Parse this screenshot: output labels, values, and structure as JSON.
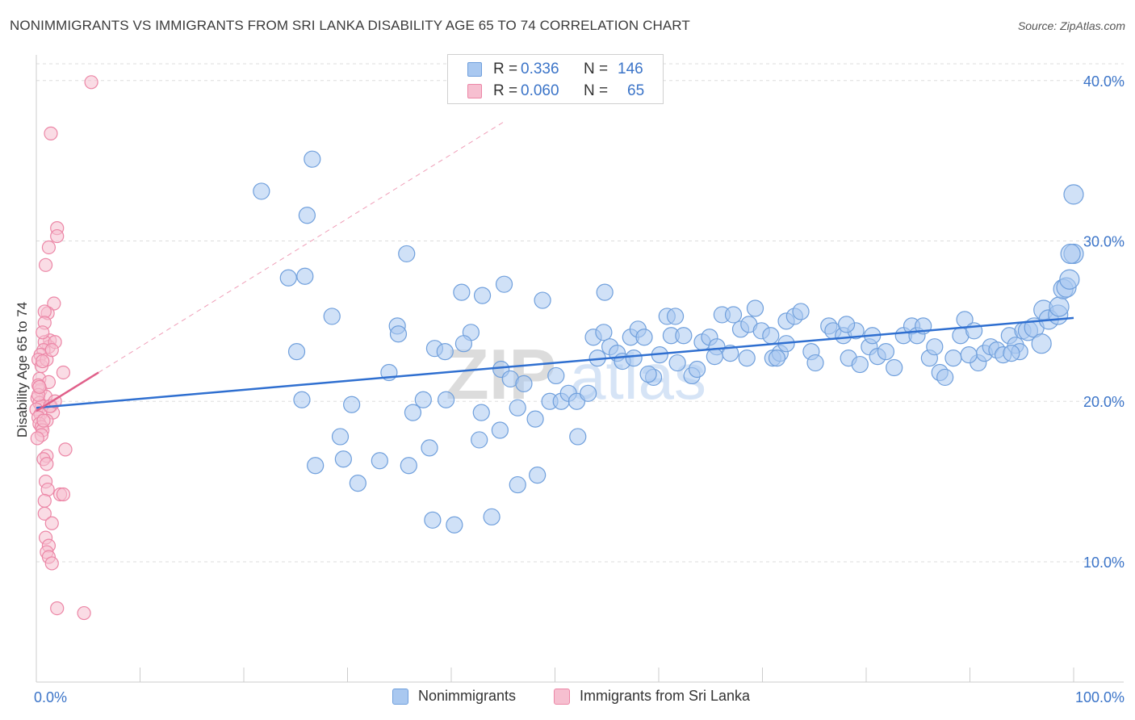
{
  "title": "NONIMMIGRANTS VS IMMIGRANTS FROM SRI LANKA DISABILITY AGE 65 TO 74 CORRELATION CHART",
  "source": "Source: ZipAtlas.com",
  "watermark": {
    "zip": "ZIP",
    "atlas": "atlas"
  },
  "colors": {
    "blue_fill": "#a9c8f0",
    "blue_stroke": "#6f9fdc",
    "blue_line": "#2f6fd0",
    "pink_fill": "#f6bfd0",
    "pink_stroke": "#ec86a6",
    "pink_line": "#e0608a",
    "axis_text": "#3b74c8",
    "grid": "#dddddd"
  },
  "legend_top": [
    {
      "r_label": "R =",
      "r_value": "0.336",
      "n_label": "N =",
      "n_value": "146",
      "color": "#a9c8f0",
      "border": "#6f9fdc"
    },
    {
      "r_label": "R =",
      "r_value": "0.060",
      "n_label": "N =",
      "n_value": "65",
      "color": "#f6bfd0",
      "border": "#ec86a6"
    }
  ],
  "legend_bottom": [
    {
      "label": "Nonimmigrants",
      "color": "#a9c8f0",
      "border": "#6f9fdc"
    },
    {
      "label": "Immigrants from Sri Lanka",
      "color": "#f6bfd0",
      "border": "#ec86a6"
    }
  ],
  "chart_data": {
    "type": "scatter",
    "title": "NONIMMIGRANTS VS IMMIGRANTS FROM SRI LANKA DISABILITY AGE 65 TO 74 CORRELATION CHART",
    "xlabel": "",
    "ylabel": "Disability Age 65 to 74",
    "xlim": [
      0,
      100
    ],
    "ylim": [
      2.5,
      41.5
    ],
    "x_tick_labels": [
      "0.0%",
      "100.0%"
    ],
    "y_ticks": [
      10,
      20,
      30,
      40
    ],
    "y_tick_labels": [
      "10.0%",
      "20.0%",
      "30.0%",
      "40.0%"
    ],
    "grid": true,
    "series": [
      {
        "name": "Nonimmigrants",
        "r": 0.336,
        "n": 146,
        "trend": {
          "x0": 0,
          "y0": 19.6,
          "x1": 100,
          "y1": 25.2
        },
        "points": [
          [
            21.7,
            33.1,
            10
          ],
          [
            26.6,
            35.1,
            10
          ],
          [
            26.1,
            31.6,
            10
          ],
          [
            35.7,
            29.2,
            10
          ],
          [
            24.3,
            27.7,
            10
          ],
          [
            25.9,
            27.8,
            10
          ],
          [
            41.0,
            26.8,
            10
          ],
          [
            43.0,
            26.6,
            10
          ],
          [
            45.1,
            27.3,
            10
          ],
          [
            48.8,
            26.3,
            10
          ],
          [
            54.8,
            26.8,
            10
          ],
          [
            28.5,
            25.3,
            10
          ],
          [
            34.8,
            24.7,
            10
          ],
          [
            34.9,
            24.2,
            10
          ],
          [
            41.9,
            24.3,
            10
          ],
          [
            41.2,
            23.6,
            10
          ],
          [
            38.4,
            23.3,
            10
          ],
          [
            39.4,
            23.1,
            10
          ],
          [
            25.1,
            23.1,
            10
          ],
          [
            30.4,
            19.8,
            10
          ],
          [
            34.0,
            21.8,
            10
          ],
          [
            37.3,
            20.1,
            10
          ],
          [
            39.5,
            20.1,
            10
          ],
          [
            42.9,
            19.3,
            10
          ],
          [
            44.8,
            22.0,
            10
          ],
          [
            45.7,
            21.4,
            10
          ],
          [
            47.0,
            21.1,
            10
          ],
          [
            46.4,
            19.6,
            10
          ],
          [
            48.1,
            18.9,
            10
          ],
          [
            50.1,
            21.6,
            10
          ],
          [
            49.5,
            20.0,
            10
          ],
          [
            50.6,
            20.0,
            10
          ],
          [
            51.3,
            20.5,
            10
          ],
          [
            52.1,
            20.0,
            10
          ],
          [
            53.2,
            20.5,
            10
          ],
          [
            36.3,
            19.3,
            10
          ],
          [
            25.6,
            20.1,
            10
          ],
          [
            29.3,
            17.8,
            10
          ],
          [
            29.6,
            16.4,
            10
          ],
          [
            31.0,
            14.9,
            10
          ],
          [
            33.1,
            16.3,
            10
          ],
          [
            35.9,
            16.0,
            10
          ],
          [
            37.9,
            17.1,
            10
          ],
          [
            42.7,
            17.6,
            10
          ],
          [
            44.7,
            18.2,
            10
          ],
          [
            46.4,
            14.8,
            10
          ],
          [
            48.3,
            15.4,
            10
          ],
          [
            52.2,
            17.8,
            10
          ],
          [
            38.2,
            12.6,
            10
          ],
          [
            40.3,
            12.3,
            10
          ],
          [
            43.9,
            12.8,
            10
          ],
          [
            26.9,
            16.0,
            10
          ],
          [
            53.7,
            24.0,
            10
          ],
          [
            54.7,
            24.3,
            10
          ],
          [
            55.3,
            23.4,
            10
          ],
          [
            54.1,
            22.7,
            10
          ],
          [
            56.0,
            23.0,
            10
          ],
          [
            56.5,
            22.5,
            10
          ],
          [
            57.6,
            22.7,
            10
          ],
          [
            57.3,
            24.0,
            10
          ],
          [
            58.0,
            24.5,
            10
          ],
          [
            59.5,
            21.5,
            10
          ],
          [
            60.1,
            22.9,
            10
          ],
          [
            59.0,
            21.7,
            10
          ],
          [
            60.8,
            25.3,
            10
          ],
          [
            61.2,
            24.1,
            10
          ],
          [
            61.8,
            22.4,
            10
          ],
          [
            62.4,
            24.1,
            10
          ],
          [
            63.2,
            21.6,
            10
          ],
          [
            63.7,
            22.0,
            10
          ],
          [
            64.2,
            23.7,
            10
          ],
          [
            64.9,
            24.0,
            10
          ],
          [
            65.6,
            23.4,
            10
          ],
          [
            66.1,
            25.4,
            10
          ],
          [
            66.9,
            23.0,
            10
          ],
          [
            67.2,
            25.4,
            10
          ],
          [
            67.9,
            24.5,
            10
          ],
          [
            68.5,
            22.7,
            10
          ],
          [
            68.7,
            24.8,
            10
          ],
          [
            69.3,
            25.8,
            10
          ],
          [
            69.9,
            24.4,
            10
          ],
          [
            70.8,
            24.1,
            10
          ],
          [
            71.0,
            22.7,
            10
          ],
          [
            71.7,
            23.0,
            10
          ],
          [
            72.3,
            23.6,
            10
          ],
          [
            72.3,
            25.0,
            10
          ],
          [
            73.1,
            25.3,
            10
          ],
          [
            73.7,
            25.6,
            10
          ],
          [
            74.7,
            23.1,
            10
          ],
          [
            75.1,
            22.4,
            10
          ],
          [
            76.4,
            24.7,
            10
          ],
          [
            76.8,
            24.4,
            10
          ],
          [
            77.8,
            24.1,
            10
          ],
          [
            78.3,
            22.7,
            10
          ],
          [
            79.0,
            24.4,
            10
          ],
          [
            79.4,
            22.3,
            10
          ],
          [
            80.3,
            23.4,
            10
          ],
          [
            80.6,
            24.1,
            10
          ],
          [
            81.1,
            22.8,
            10
          ],
          [
            81.9,
            23.1,
            10
          ],
          [
            82.7,
            22.1,
            10
          ],
          [
            83.6,
            24.1,
            10
          ],
          [
            84.4,
            24.7,
            10
          ],
          [
            84.9,
            24.1,
            10
          ],
          [
            85.5,
            24.7,
            10
          ],
          [
            86.1,
            22.7,
            10
          ],
          [
            86.6,
            23.4,
            10
          ],
          [
            87.1,
            21.8,
            10
          ],
          [
            87.6,
            21.5,
            10
          ],
          [
            88.4,
            22.7,
            10
          ],
          [
            89.1,
            24.1,
            10
          ],
          [
            89.5,
            25.1,
            10
          ],
          [
            90.4,
            24.4,
            10
          ],
          [
            90.8,
            22.4,
            10
          ],
          [
            91.4,
            23.0,
            10
          ],
          [
            92.0,
            23.4,
            10
          ],
          [
            92.6,
            23.2,
            10
          ],
          [
            93.2,
            22.9,
            10
          ],
          [
            93.8,
            24.1,
            10
          ],
          [
            94.4,
            23.5,
            10
          ],
          [
            94.8,
            23.1,
            10
          ],
          [
            95.1,
            24.4,
            10
          ],
          [
            95.6,
            24.4,
            12
          ],
          [
            96.2,
            24.6,
            12
          ],
          [
            96.9,
            23.6,
            12
          ],
          [
            97.1,
            25.7,
            12
          ],
          [
            97.6,
            25.1,
            12
          ],
          [
            98.5,
            25.4,
            12
          ],
          [
            98.6,
            25.9,
            12
          ],
          [
            99.0,
            27.0,
            12
          ],
          [
            99.3,
            27.1,
            12
          ],
          [
            99.6,
            27.6,
            12
          ],
          [
            100.0,
            29.2,
            12
          ],
          [
            99.7,
            29.2,
            12
          ],
          [
            100.0,
            32.9,
            12
          ],
          [
            94.0,
            23.0,
            10
          ],
          [
            89.9,
            22.9,
            10
          ],
          [
            78.1,
            24.8,
            10
          ],
          [
            71.4,
            22.7,
            10
          ],
          [
            65.4,
            22.8,
            10
          ],
          [
            61.6,
            25.3,
            10
          ],
          [
            58.6,
            24.0,
            10
          ]
        ]
      },
      {
        "name": "Immigrants from Sri Lanka",
        "r": 0.06,
        "n": 65,
        "trend": {
          "x0": 0,
          "y0": 19.4,
          "x1": 6.0,
          "y1": 21.8
        },
        "points": [
          [
            5.3,
            39.9,
            8
          ],
          [
            1.4,
            36.7,
            8
          ],
          [
            2.0,
            30.8,
            8
          ],
          [
            2.0,
            30.3,
            8
          ],
          [
            1.2,
            29.6,
            8
          ],
          [
            0.9,
            28.5,
            8
          ],
          [
            1.7,
            26.1,
            8
          ],
          [
            1.1,
            25.5,
            8
          ],
          [
            0.8,
            25.6,
            8
          ],
          [
            0.8,
            24.9,
            8
          ],
          [
            1.3,
            23.8,
            8
          ],
          [
            1.2,
            23.4,
            8
          ],
          [
            0.8,
            23.7,
            8
          ],
          [
            0.7,
            23.2,
            8
          ],
          [
            0.4,
            22.9,
            8
          ],
          [
            0.2,
            22.6,
            8
          ],
          [
            0.5,
            22.2,
            8
          ],
          [
            2.6,
            21.8,
            8
          ],
          [
            0.3,
            21.4,
            8
          ],
          [
            1.2,
            21.2,
            8
          ],
          [
            0.4,
            20.7,
            8
          ],
          [
            0.9,
            20.3,
            8
          ],
          [
            0.1,
            20.2,
            8
          ],
          [
            0.3,
            19.9,
            8
          ],
          [
            0.5,
            19.7,
            8
          ],
          [
            1.4,
            19.7,
            8
          ],
          [
            0.0,
            19.5,
            8
          ],
          [
            1.6,
            19.3,
            8
          ],
          [
            0.4,
            19.2,
            8
          ],
          [
            0.2,
            19.0,
            8
          ],
          [
            1.0,
            18.8,
            8
          ],
          [
            0.3,
            18.6,
            8
          ],
          [
            0.5,
            18.4,
            8
          ],
          [
            0.6,
            18.2,
            8
          ],
          [
            0.5,
            17.9,
            8
          ],
          [
            2.8,
            17.0,
            8
          ],
          [
            1.0,
            16.6,
            8
          ],
          [
            0.7,
            16.4,
            8
          ],
          [
            1.0,
            16.1,
            8
          ],
          [
            0.9,
            15.0,
            8
          ],
          [
            1.1,
            14.5,
            8
          ],
          [
            2.3,
            14.2,
            8
          ],
          [
            2.6,
            14.2,
            8
          ],
          [
            0.8,
            13.8,
            8
          ],
          [
            0.8,
            13.0,
            8
          ],
          [
            1.5,
            12.4,
            8
          ],
          [
            0.9,
            11.5,
            8
          ],
          [
            1.2,
            11.0,
            8
          ],
          [
            1.0,
            10.6,
            8
          ],
          [
            1.2,
            10.3,
            8
          ],
          [
            1.5,
            9.9,
            8
          ],
          [
            2.0,
            7.1,
            8
          ],
          [
            4.6,
            6.8,
            8
          ],
          [
            0.2,
            21.0,
            8
          ],
          [
            1.8,
            23.7,
            8
          ],
          [
            0.6,
            24.3,
            8
          ],
          [
            1.0,
            22.6,
            8
          ],
          [
            0.2,
            20.4,
            8
          ],
          [
            1.3,
            19.7,
            8
          ],
          [
            0.7,
            18.8,
            8
          ],
          [
            0.1,
            17.7,
            8
          ],
          [
            1.8,
            20.0,
            8
          ],
          [
            0.3,
            20.9,
            8
          ],
          [
            1.5,
            23.2,
            8
          ],
          [
            0.6,
            22.5,
            8
          ]
        ]
      }
    ]
  }
}
